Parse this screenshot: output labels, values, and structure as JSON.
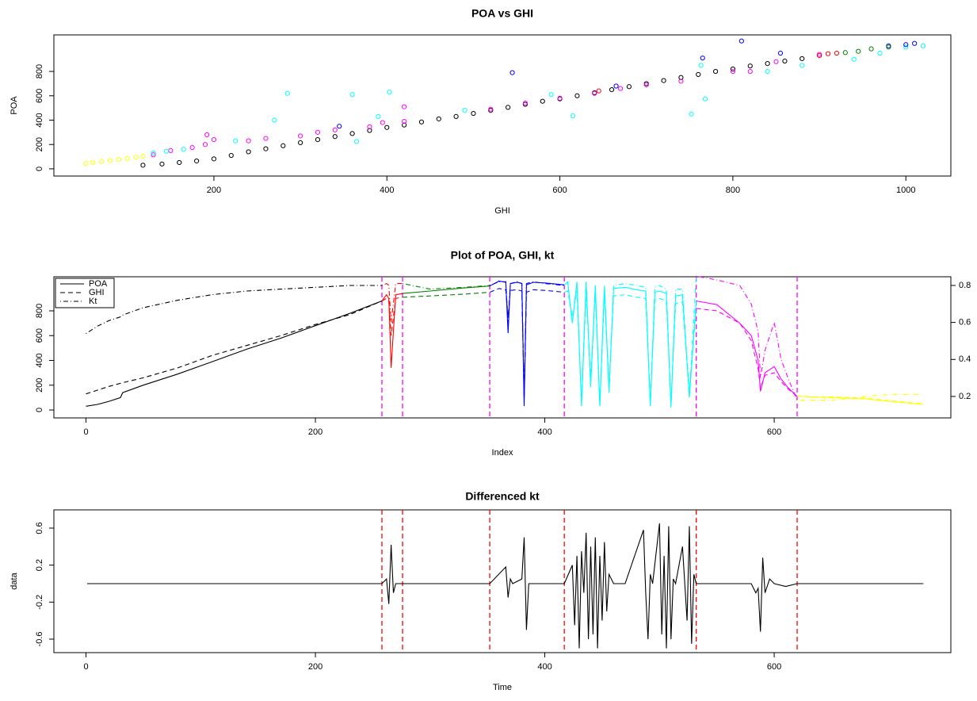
{
  "chart_data": [
    {
      "type": "scatter",
      "title": "POA vs GHI",
      "x_label": "GHI",
      "y_label": "POA",
      "xlim": [
        15,
        1052
      ],
      "ylim": [
        -59,
        1100
      ],
      "xticks": [
        200,
        400,
        600,
        800,
        1000
      ],
      "yticks": [
        0,
        200,
        400,
        600,
        800
      ],
      "series": [
        {
          "color": "black",
          "x": [
            118,
            140,
            160,
            180,
            200,
            220,
            240,
            260,
            280,
            300,
            320,
            340,
            360,
            380,
            400,
            420,
            440,
            460,
            480,
            500,
            520,
            540,
            560,
            580,
            600,
            620,
            640,
            660,
            680,
            700,
            720,
            740,
            760,
            780,
            800,
            820,
            840,
            860,
            880
          ],
          "values": [
            30,
            40,
            52,
            65,
            82,
            110,
            140,
            165,
            190,
            215,
            240,
            265,
            290,
            315,
            340,
            360,
            385,
            410,
            430,
            455,
            480,
            505,
            530,
            555,
            575,
            600,
            625,
            650,
            675,
            700,
            725,
            750,
            775,
            800,
            820,
            845,
            865,
            885,
            905
          ]
        },
        {
          "color": "yellow",
          "x": [
            52,
            60,
            70,
            80,
            90,
            100,
            110,
            118
          ],
          "values": [
            45,
            52,
            60,
            68,
            76,
            85,
            95,
            103
          ]
        },
        {
          "color": "magenta",
          "x": [
            130,
            150,
            175,
            190,
            192,
            200,
            240,
            260,
            300,
            320,
            340,
            380,
            395,
            420,
            420,
            520,
            560,
            600,
            640,
            670,
            700,
            740,
            800,
            820,
            850,
            900
          ],
          "values": [
            115,
            150,
            175,
            200,
            280,
            240,
            230,
            250,
            270,
            300,
            320,
            345,
            380,
            510,
            390,
            490,
            540,
            580,
            620,
            660,
            690,
            720,
            800,
            800,
            880,
            940
          ]
        },
        {
          "color": "cyan",
          "x": [
            130,
            145,
            165,
            225,
            270,
            285,
            360,
            365,
            390,
            403,
            490,
            590,
            615,
            752,
            763,
            768,
            840,
            880,
            940,
            970,
            1000,
            1020
          ],
          "values": [
            130,
            145,
            160,
            230,
            400,
            620,
            610,
            225,
            430,
            630,
            480,
            610,
            435,
            450,
            850,
            575,
            800,
            850,
            900,
            950,
            1000,
            1010
          ]
        },
        {
          "color": "blue",
          "x": [
            345,
            545,
            665,
            765,
            810,
            855,
            980,
            1000,
            1010
          ],
          "values": [
            350,
            790,
            680,
            910,
            1050,
            950,
            1010,
            1020,
            1030
          ]
        },
        {
          "color": "red",
          "x": [
            645,
            900,
            910,
            920
          ],
          "values": [
            640,
            930,
            945,
            950
          ]
        },
        {
          "color": "green",
          "x": [
            930,
            945,
            960,
            980
          ],
          "values": [
            955,
            965,
            985,
            1000
          ]
        }
      ]
    },
    {
      "type": "line",
      "title": "Plot of POA, GHI, kt",
      "x_label": "Index",
      "xlim": [
        -28,
        754
      ],
      "ylim": [
        -64,
        1075
      ],
      "y2lim": [
        0.084,
        0.847
      ],
      "xticks": [
        0,
        200,
        400,
        600
      ],
      "yticks": [
        0,
        200,
        400,
        600,
        800
      ],
      "y2ticks": [
        0.2,
        0.4,
        0.6,
        0.8
      ],
      "vlines": [
        258,
        276,
        352,
        417,
        532,
        620
      ],
      "vline_color": "magenta",
      "segment_colors": [
        "black",
        "red",
        "green",
        "blue",
        "cyan",
        "magenta",
        "yellow"
      ],
      "x": [
        0,
        10,
        20,
        30,
        32,
        50,
        80,
        110,
        140,
        170,
        200,
        230,
        258,
        262,
        264,
        266,
        270,
        276,
        300,
        330,
        352,
        360,
        366,
        368,
        370,
        376,
        380,
        382,
        384,
        390,
        400,
        417,
        420,
        424,
        428,
        432,
        436,
        440,
        444,
        448,
        452,
        456,
        460,
        470,
        480,
        488,
        492,
        496,
        500,
        506,
        510,
        514,
        520,
        526,
        532,
        550,
        570,
        580,
        586,
        588,
        592,
        600,
        606,
        612,
        620,
        650,
        680,
        700,
        730
      ],
      "series": [
        {
          "name": "POA",
          "dash": "solid",
          "values": [
            30,
            45,
            70,
            100,
            140,
            200,
            290,
            390,
            490,
            580,
            680,
            780,
            880,
            930,
            900,
            340,
            930,
            940,
            960,
            985,
            1000,
            1040,
            1030,
            620,
            1020,
            1030,
            1020,
            30,
            1010,
            1030,
            1025,
            1010,
            1030,
            700,
            1030,
            30,
            1030,
            200,
            1000,
            30,
            1000,
            150,
            980,
            990,
            970,
            960,
            30,
            950,
            960,
            940,
            30,
            920,
            930,
            100,
            880,
            850,
            700,
            600,
            400,
            150,
            300,
            350,
            250,
            180,
            110,
            100,
            90,
            70,
            45
          ]
        },
        {
          "name": "GHI",
          "dash": "dashed",
          "values": [
            130,
            160,
            190,
            215,
            220,
            260,
            340,
            440,
            520,
            600,
            690,
            770,
            880,
            900,
            880,
            600,
            900,
            910,
            920,
            935,
            950,
            980,
            970,
            750,
            965,
            970,
            960,
            100,
            950,
            970,
            965,
            950,
            960,
            750,
            960,
            60,
            960,
            250,
            940,
            60,
            930,
            200,
            920,
            930,
            910,
            900,
            60,
            890,
            900,
            880,
            60,
            860,
            870,
            150,
            820,
            800,
            700,
            560,
            330,
            180,
            280,
            300,
            230,
            170,
            110,
            105,
            95,
            75,
            50
          ]
        },
        {
          "name": "Kt",
          "dash": "dotdash",
          "axis": "y2",
          "values": [
            0.54,
            0.58,
            0.61,
            0.63,
            0.64,
            0.68,
            0.72,
            0.75,
            0.77,
            0.78,
            0.79,
            0.8,
            0.8,
            0.81,
            0.8,
            0.6,
            0.81,
            0.81,
            0.78,
            0.79,
            0.8,
            0.82,
            0.82,
            0.6,
            0.81,
            0.82,
            0.81,
            0.2,
            0.81,
            0.82,
            0.81,
            0.8,
            0.82,
            0.6,
            0.82,
            0.15,
            0.82,
            0.25,
            0.8,
            0.15,
            0.8,
            0.22,
            0.8,
            0.81,
            0.8,
            0.79,
            0.15,
            0.79,
            0.8,
            0.78,
            0.14,
            0.78,
            0.78,
            0.2,
            0.85,
            0.83,
            0.8,
            0.7,
            0.55,
            0.3,
            0.45,
            0.6,
            0.4,
            0.3,
            0.18,
            0.18,
            0.2,
            0.21,
            0.21
          ]
        }
      ]
    },
    {
      "type": "line",
      "title": "Differenced kt",
      "x_label": "Time",
      "y_label": "data",
      "xlim": [
        -28,
        754
      ],
      "ylim": [
        -0.746,
        0.797
      ],
      "xticks": [
        0,
        200,
        400,
        600
      ],
      "yticks": [
        -0.6,
        -0.2,
        0.2,
        0.6
      ],
      "vlines": [
        258,
        276,
        352,
        417,
        532,
        620
      ],
      "vline_color": "red",
      "x": [
        1,
        50,
        100,
        150,
        200,
        250,
        258,
        262,
        264,
        266,
        268,
        270,
        276,
        300,
        352,
        366,
        368,
        370,
        372,
        380,
        382,
        384,
        386,
        400,
        417,
        424,
        426,
        428,
        430,
        432,
        434,
        436,
        438,
        440,
        442,
        444,
        446,
        448,
        450,
        452,
        454,
        456,
        460,
        470,
        486,
        488,
        490,
        492,
        494,
        500,
        502,
        504,
        506,
        508,
        510,
        512,
        514,
        520,
        524,
        526,
        528,
        530,
        532,
        550,
        570,
        580,
        584,
        586,
        588,
        590,
        592,
        596,
        600,
        610,
        620,
        650,
        700,
        730
      ],
      "series": [
        {
          "color": "black",
          "values": [
            0,
            0,
            0,
            0,
            0,
            0,
            0,
            0.05,
            -0.22,
            0.42,
            -0.1,
            0,
            0,
            0,
            0,
            0.18,
            -0.15,
            0.05,
            0,
            0.05,
            0.5,
            -0.5,
            0,
            0,
            0,
            0.2,
            -0.45,
            0.3,
            -0.7,
            0.35,
            -0.1,
            0.55,
            -0.6,
            0.4,
            -0.55,
            0.5,
            -0.7,
            0.3,
            -0.4,
            0.45,
            -0.3,
            0.1,
            0,
            0,
            0.58,
            -0.1,
            -0.6,
            0.1,
            0,
            0.65,
            -0.55,
            0.3,
            -0.7,
            0.62,
            -0.6,
            0.05,
            0,
            0.4,
            -0.4,
            0.62,
            -0.65,
            0.1,
            0,
            0,
            0,
            0,
            -0.1,
            -0.05,
            -0.52,
            0.28,
            -0.1,
            0.05,
            0,
            -0.03,
            0,
            0,
            0,
            0
          ]
        }
      ]
    }
  ]
}
